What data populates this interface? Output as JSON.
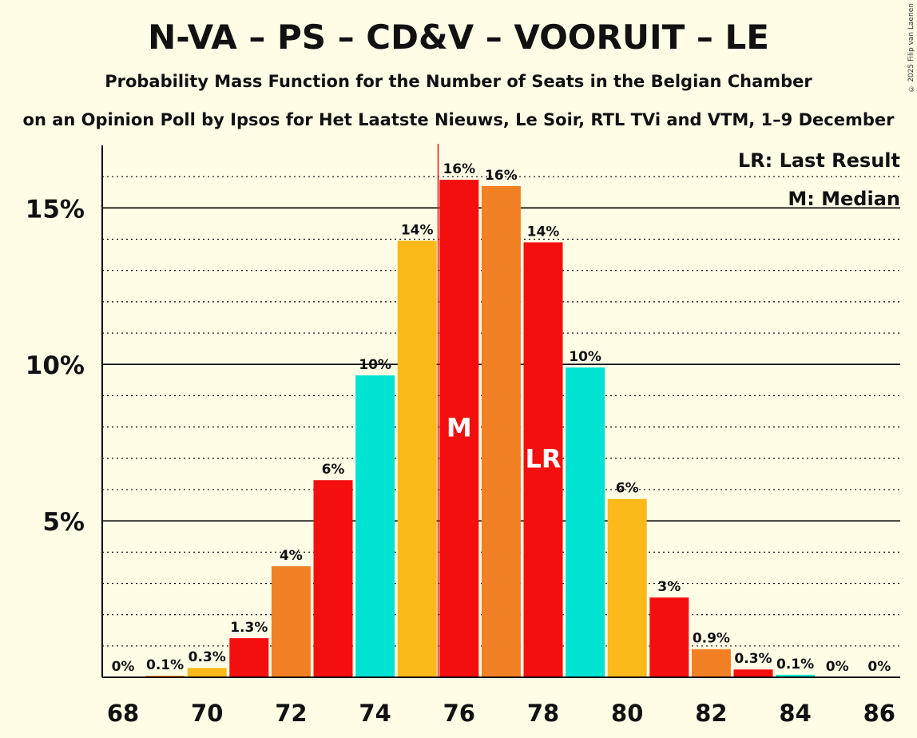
{
  "copyright": "© 2025 Filip van Laenen",
  "chart_data": {
    "type": "bar",
    "title": "N-VA – PS – CD&V – VOORUIT – LE",
    "subtitle": "Probability Mass Function for the Number of Seats in the Belgian Chamber",
    "subtitle2": "on an Opinion Poll by Ipsos for Het Laatste Nieuws, Le Soir, RTL TVi and VTM, 1–9 December",
    "x": [
      68,
      69,
      70,
      71,
      72,
      73,
      74,
      75,
      76,
      77,
      78,
      79,
      80,
      81,
      82,
      83,
      84,
      85,
      86
    ],
    "values": [
      0,
      0.05,
      0.3,
      1.25,
      3.55,
      6.3,
      9.65,
      13.95,
      15.9,
      15.7,
      13.9,
      9.9,
      5.7,
      2.55,
      0.9,
      0.25,
      0.08,
      0,
      0
    ],
    "value_labels": [
      "0%",
      "0.1%",
      "0.3%",
      "1.3%",
      "4%",
      "6%",
      "10%",
      "14%",
      "16%",
      "16%",
      "14%",
      "10%",
      "6%",
      "3%",
      "0.9%",
      "0.3%",
      "0.1%",
      "0%",
      "0%"
    ],
    "bar_colors": [
      "#F98A1F",
      "#F98A1F",
      "#FBBA1A",
      "#F40F0F",
      "#F28025",
      "#F40F0F",
      "#00E3D2",
      "#FBBA1A",
      "#F40F0F",
      "#F28025",
      "#F40F0F",
      "#00E3D2",
      "#FBBA1A",
      "#F40F0F",
      "#F28025",
      "#F40F0F",
      "#00E3D2",
      "#FBBA1A",
      "#F40F0F"
    ],
    "x_ticks": [
      68,
      70,
      72,
      74,
      76,
      78,
      80,
      82,
      84,
      86
    ],
    "x_tick_labels": [
      "68",
      "70",
      "72",
      "74",
      "76",
      "78",
      "80",
      "82",
      "84",
      "86"
    ],
    "y_ticks": [
      5,
      10,
      15
    ],
    "y_tick_labels": [
      "5%",
      "10%",
      "15%"
    ],
    "ylim": [
      0,
      17
    ],
    "median_seat": 76,
    "median_label": "M",
    "last_result_seat": 78,
    "last_result_label": "LR",
    "legend": [
      "LR: Last Result",
      "M: Median"
    ]
  }
}
